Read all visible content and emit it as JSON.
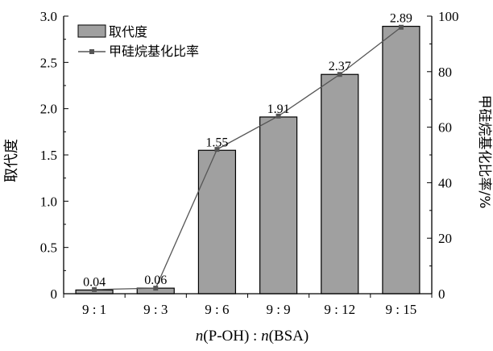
{
  "chart_data": {
    "type": "bar",
    "categories": [
      "9 : 1",
      "9 : 3",
      "9 : 6",
      "9 : 9",
      "9 : 12",
      "9 : 15"
    ],
    "series": [
      {
        "name": "取代度",
        "type": "bar",
        "axis": "left",
        "color": "#a0a0a0",
        "values": [
          0.04,
          0.06,
          1.55,
          1.91,
          2.37,
          2.89
        ],
        "labels": [
          "0.04",
          "0.06",
          "1.55",
          "1.91",
          "2.37",
          "2.89"
        ]
      },
      {
        "name": "甲硅烷基化比率",
        "type": "line",
        "axis": "right",
        "color": "#555555",
        "values": [
          1.5,
          2,
          52,
          64,
          79,
          96
        ]
      }
    ],
    "xlabel": "n(P-OH) : n(BSA)",
    "ylabel": "取代度",
    "y2label": "甲硅烷基化比率/%",
    "ylim": [
      0,
      3.0
    ],
    "y2lim": [
      0,
      100
    ],
    "yticks": [
      "0",
      "0.5",
      "1.0",
      "1.5",
      "2.0",
      "2.5",
      "3.0"
    ],
    "y2ticks": [
      "0",
      "20",
      "40",
      "60",
      "80",
      "100"
    ],
    "legend": "top-left",
    "grid": false
  }
}
